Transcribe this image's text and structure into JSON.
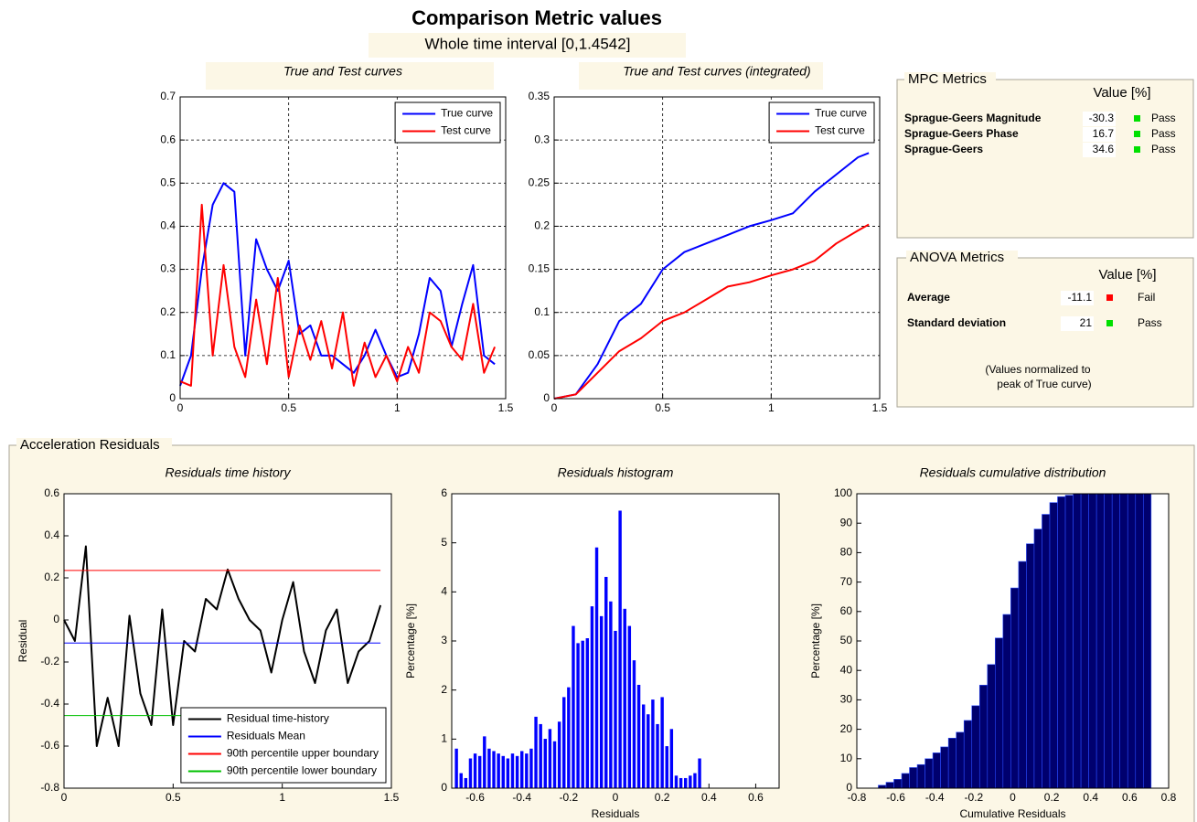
{
  "header": {
    "title": "Comparison Metric values",
    "subtitle": "Whole time interval [0,1.4542]"
  },
  "mpc": {
    "title": "MPC Metrics",
    "column": "Value [%]",
    "rows": [
      {
        "name": "Sprague-Geers Magnitude",
        "value": -30.3,
        "status": "Pass",
        "color": "#00e000"
      },
      {
        "name": "Sprague-Geers Phase",
        "value": 16.7,
        "status": "Pass",
        "color": "#00e000"
      },
      {
        "name": "Sprague-Geers",
        "value": 34.6,
        "status": "Pass",
        "color": "#00e000"
      }
    ]
  },
  "anova": {
    "title": "ANOVA Metrics",
    "column": "Value [%]",
    "rows": [
      {
        "name": "Average",
        "value": -11.1,
        "status": "Fail",
        "color": "#ff0000"
      },
      {
        "name": "Standard deviation",
        "value": 21,
        "status": "Pass",
        "color": "#00e000"
      }
    ],
    "note": [
      "(Values normalized to",
      "peak of True curve)"
    ]
  },
  "residuals_panel": {
    "title": "Acceleration Residuals"
  },
  "chart_data": [
    {
      "type": "line",
      "title": "True and Test curves",
      "grid": true,
      "legend": "upper right",
      "xlim": [
        0,
        1.5
      ],
      "xticks": [
        0,
        0.5,
        1,
        1.5
      ],
      "ylim": [
        0,
        0.7
      ],
      "yticks": [
        0,
        0.1,
        0.2,
        0.3,
        0.4,
        0.5,
        0.6,
        0.7
      ],
      "x": [
        0,
        0.05,
        0.1,
        0.15,
        0.2,
        0.25,
        0.3,
        0.35,
        0.4,
        0.45,
        0.5,
        0.55,
        0.6,
        0.65,
        0.7,
        0.75,
        0.8,
        0.85,
        0.9,
        0.95,
        1.0,
        1.05,
        1.1,
        1.15,
        1.2,
        1.25,
        1.3,
        1.35,
        1.4,
        1.45
      ],
      "series": [
        {
          "name": "True curve",
          "color": "#0000ff",
          "values": [
            0.03,
            0.1,
            0.3,
            0.45,
            0.5,
            0.48,
            0.1,
            0.37,
            0.3,
            0.25,
            0.32,
            0.15,
            0.17,
            0.1,
            0.1,
            0.08,
            0.06,
            0.1,
            0.16,
            0.1,
            0.05,
            0.06,
            0.15,
            0.28,
            0.25,
            0.12,
            0.22,
            0.31,
            0.1,
            0.08
          ]
        },
        {
          "name": "Test curve",
          "color": "#ff0000",
          "values": [
            0.04,
            0.03,
            0.45,
            0.1,
            0.31,
            0.12,
            0.05,
            0.23,
            0.08,
            0.28,
            0.05,
            0.17,
            0.09,
            0.18,
            0.07,
            0.2,
            0.03,
            0.13,
            0.05,
            0.1,
            0.04,
            0.12,
            0.06,
            0.2,
            0.18,
            0.12,
            0.09,
            0.22,
            0.06,
            0.12
          ]
        }
      ]
    },
    {
      "type": "line",
      "title": "True and Test curves (integrated)",
      "grid": true,
      "legend": "upper right",
      "xlim": [
        0,
        1.5
      ],
      "xticks": [
        0,
        0.5,
        1,
        1.5
      ],
      "ylim": [
        0,
        0.35
      ],
      "yticks": [
        0,
        0.05,
        0.1,
        0.15,
        0.2,
        0.25,
        0.3,
        0.35
      ],
      "x": [
        0,
        0.1,
        0.2,
        0.3,
        0.4,
        0.5,
        0.6,
        0.7,
        0.8,
        0.9,
        1.0,
        1.1,
        1.2,
        1.3,
        1.4,
        1.45
      ],
      "series": [
        {
          "name": "True curve",
          "color": "#0000ff",
          "values": [
            0,
            0.005,
            0.04,
            0.09,
            0.11,
            0.15,
            0.17,
            0.18,
            0.19,
            0.2,
            0.207,
            0.215,
            0.24,
            0.26,
            0.28,
            0.285
          ]
        },
        {
          "name": "Test curve",
          "color": "#ff0000",
          "values": [
            0,
            0.005,
            0.03,
            0.055,
            0.07,
            0.09,
            0.1,
            0.115,
            0.13,
            0.135,
            0.143,
            0.15,
            0.16,
            0.18,
            0.195,
            0.202
          ]
        }
      ]
    },
    {
      "type": "line",
      "title": "Residuals time history",
      "ylabel": "Residual",
      "grid": false,
      "legend": "lower right",
      "xlim": [
        0,
        1.5
      ],
      "xticks": [
        0,
        0.5,
        1,
        1.5
      ],
      "ylim": [
        -0.8,
        0.6
      ],
      "yticks": [
        -0.8,
        -0.6,
        -0.4,
        -0.2,
        0,
        0.2,
        0.4,
        0.6
      ],
      "series": [
        {
          "name": "Residual time-history",
          "color": "#000000",
          "width": 2,
          "x": [
            0,
            0.05,
            0.1,
            0.15,
            0.2,
            0.25,
            0.3,
            0.35,
            0.4,
            0.45,
            0.5,
            0.55,
            0.6,
            0.65,
            0.7,
            0.75,
            0.8,
            0.85,
            0.9,
            0.95,
            1.0,
            1.05,
            1.1,
            1.15,
            1.2,
            1.25,
            1.3,
            1.35,
            1.4,
            1.45
          ],
          "values": [
            0,
            -0.1,
            0.35,
            -0.6,
            -0.37,
            -0.6,
            0.02,
            -0.35,
            -0.5,
            0.05,
            -0.5,
            -0.1,
            -0.15,
            0.1,
            0.05,
            0.24,
            0.1,
            0,
            -0.05,
            -0.25,
            0,
            0.18,
            -0.15,
            -0.3,
            -0.05,
            0.05,
            -0.3,
            -0.15,
            -0.1,
            0.07
          ]
        },
        {
          "name": "Residuals Mean",
          "color": "#0000ff",
          "width": 1,
          "x": [
            0,
            1.45
          ],
          "values": [
            -0.11,
            -0.11
          ]
        },
        {
          "name": "90th percentile upper boundary",
          "color": "#ff0000",
          "width": 1,
          "x": [
            0,
            1.45
          ],
          "values": [
            0.235,
            0.235
          ]
        },
        {
          "name": "90th percentile lower boundary",
          "color": "#00c000",
          "width": 1,
          "x": [
            0,
            1.45
          ],
          "values": [
            -0.455,
            -0.455
          ]
        }
      ]
    },
    {
      "type": "histogram",
      "title": "Residuals histogram",
      "xlabel": "Residuals",
      "ylabel": "Percentage [%]",
      "color": "#0000ff",
      "edgecolor": "#0000ff",
      "grid": false,
      "xlim": [
        -0.7,
        0.7
      ],
      "xticks": [
        -0.6,
        -0.4,
        -0.2,
        0,
        0.2,
        0.4,
        0.6
      ],
      "ylim": [
        0,
        6
      ],
      "yticks": [
        0,
        1,
        2,
        3,
        4,
        5,
        6
      ],
      "bins": [
        -0.69,
        -0.67,
        -0.65,
        -0.63,
        -0.61,
        -0.59,
        -0.57,
        -0.55,
        -0.53,
        -0.51,
        -0.49,
        -0.47,
        -0.45,
        -0.43,
        -0.41,
        -0.39,
        -0.37,
        -0.35,
        -0.33,
        -0.31,
        -0.29,
        -0.27,
        -0.25,
        -0.23,
        -0.21,
        -0.19,
        -0.17,
        -0.15,
        -0.13,
        -0.11,
        -0.09,
        -0.07,
        -0.05,
        -0.03,
        -0.01,
        0.01,
        0.03,
        0.05,
        0.07,
        0.09,
        0.11,
        0.13,
        0.15,
        0.17,
        0.19,
        0.21,
        0.23,
        0.25,
        0.27,
        0.29,
        0.31,
        0.33,
        0.35,
        0.37
      ],
      "values": [
        0.8,
        0.3,
        0.2,
        0.6,
        0.7,
        0.65,
        1.05,
        0.8,
        0.75,
        0.7,
        0.65,
        0.6,
        0.7,
        0.65,
        0.75,
        0.7,
        0.8,
        1.45,
        1.3,
        1.0,
        1.2,
        0.95,
        1.35,
        1.85,
        2.05,
        3.3,
        2.95,
        3.0,
        3.05,
        3.7,
        4.9,
        3.5,
        4.3,
        3.8,
        3.2,
        5.65,
        3.65,
        3.3,
        2.6,
        2.1,
        1.7,
        1.5,
        1.8,
        1.3,
        1.85,
        0.85,
        1.2,
        0.25,
        0.2,
        0.2,
        0.25,
        0.3,
        0.6
      ]
    },
    {
      "type": "histogram",
      "title": "Residuals cumulative distribution",
      "xlabel": "Cumulative Residuals",
      "ylabel": "Percentage [%]",
      "color": "#00006e",
      "edgecolor": "#2a4bff",
      "grid": false,
      "xlim": [
        -0.8,
        0.8
      ],
      "xticks": [
        -0.8,
        -0.6,
        -0.4,
        -0.2,
        0,
        0.2,
        0.4,
        0.6,
        0.8
      ],
      "ylim": [
        0,
        100
      ],
      "yticks": [
        0,
        10,
        20,
        30,
        40,
        50,
        60,
        70,
        80,
        90,
        100
      ],
      "bins": [
        -0.69,
        -0.65,
        -0.61,
        -0.57,
        -0.53,
        -0.49,
        -0.45,
        -0.41,
        -0.37,
        -0.33,
        -0.29,
        -0.25,
        -0.21,
        -0.17,
        -0.13,
        -0.09,
        -0.05,
        -0.01,
        0.03,
        0.07,
        0.11,
        0.15,
        0.19,
        0.23,
        0.27,
        0.31,
        0.35,
        0.39,
        0.43,
        0.47,
        0.51,
        0.55,
        0.59,
        0.63,
        0.67,
        0.71
      ],
      "values": [
        1,
        2,
        3,
        5,
        7,
        8,
        10,
        12,
        14,
        17,
        19,
        23,
        28,
        35,
        42,
        51,
        59,
        68,
        77,
        83,
        88,
        93,
        97,
        99,
        99.5,
        100,
        100,
        100,
        100,
        100,
        100,
        100,
        100,
        100,
        100
      ]
    }
  ]
}
